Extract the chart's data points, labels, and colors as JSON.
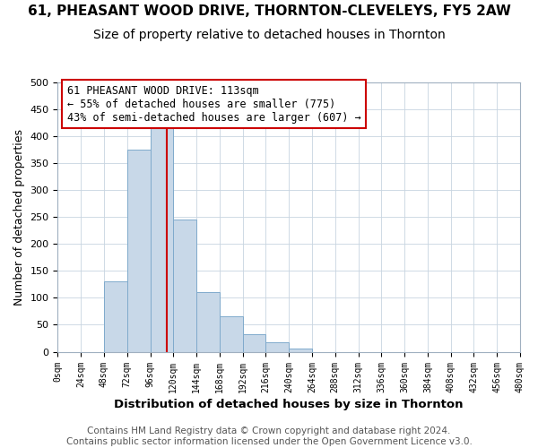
{
  "title": "61, PHEASANT WOOD DRIVE, THORNTON-CLEVELEYS, FY5 2AW",
  "subtitle": "Size of property relative to detached houses in Thornton",
  "xlabel": "Distribution of detached houses by size in Thornton",
  "ylabel": "Number of detached properties",
  "bin_edges": [
    0,
    24,
    48,
    72,
    96,
    120,
    144,
    168,
    192,
    216,
    240,
    264,
    288,
    312,
    336,
    360,
    384,
    408,
    432,
    456,
    480
  ],
  "bin_values": [
    0,
    0,
    130,
    375,
    415,
    245,
    110,
    65,
    32,
    17,
    6,
    0,
    0,
    0,
    0,
    0,
    0,
    0,
    0,
    0
  ],
  "bar_facecolor": "#c8d8e8",
  "bar_edgecolor": "#7faacc",
  "vline_x": 113,
  "vline_color": "#cc0000",
  "annotation_line1": "61 PHEASANT WOOD DRIVE: 113sqm",
  "annotation_line2": "← 55% of detached houses are smaller (775)",
  "annotation_line3": "43% of semi-detached houses are larger (607) →",
  "annotation_box_facecolor": "white",
  "annotation_box_edgecolor": "#cc0000",
  "ylim": [
    0,
    500
  ],
  "xlim": [
    0,
    480
  ],
  "tick_labels": [
    "0sqm",
    "24sqm",
    "48sqm",
    "72sqm",
    "96sqm",
    "120sqm",
    "144sqm",
    "168sqm",
    "192sqm",
    "216sqm",
    "240sqm",
    "264sqm",
    "288sqm",
    "312sqm",
    "336sqm",
    "360sqm",
    "384sqm",
    "408sqm",
    "432sqm",
    "456sqm",
    "480sqm"
  ],
  "yticks": [
    0,
    50,
    100,
    150,
    200,
    250,
    300,
    350,
    400,
    450,
    500
  ],
  "footer_text": "Contains HM Land Registry data © Crown copyright and database right 2024.\nContains public sector information licensed under the Open Government Licence v3.0.",
  "background_color": "#ffffff",
  "plot_background_color": "#ffffff",
  "grid_color": "#c8d4e0",
  "title_fontsize": 11,
  "subtitle_fontsize": 10,
  "xlabel_fontsize": 9.5,
  "ylabel_fontsize": 9,
  "footer_fontsize": 7.5,
  "annot_fontsize": 8.5
}
